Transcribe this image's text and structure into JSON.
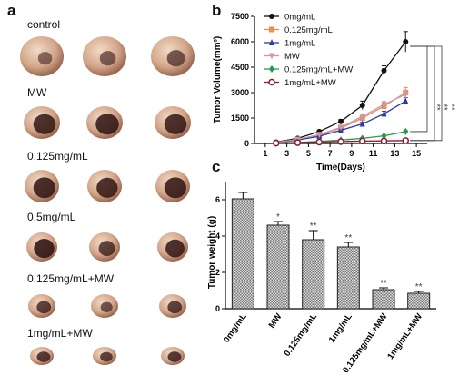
{
  "panels": {
    "a": "a",
    "b": "b",
    "c": "c"
  },
  "photo_panel": {
    "groups": [
      {
        "label": "control",
        "tumors": [
          {
            "dark": 0.05
          },
          {
            "dark": 0.15
          },
          {
            "dark": 0.25
          }
        ]
      },
      {
        "label": "MW",
        "tumors": [
          {
            "dark": 0.7
          },
          {
            "dark": 0.75
          },
          {
            "dark": 0.7
          }
        ]
      },
      {
        "label": "0.125mg/mL",
        "tumors": [
          {
            "dark": 0.75
          },
          {
            "dark": 0.7
          },
          {
            "dark": 0.75
          }
        ]
      },
      {
        "label": "0.5mg/mL",
        "tumors": [
          {
            "dark": 0.8
          },
          {
            "dark": 0.5
          },
          {
            "dark": 0.7
          }
        ]
      },
      {
        "label": "0.125mg/mL+MW",
        "tumors": [
          {
            "dark": 0.5
          },
          {
            "dark": 0.3
          },
          {
            "dark": 0.5
          }
        ]
      },
      {
        "label": "1mg/mL+MW",
        "tumors": [
          {
            "dark": 0.6
          },
          {
            "dark": 0.5
          },
          {
            "dark": 0.6
          }
        ]
      }
    ]
  },
  "chart_data": [
    {
      "type": "line",
      "xlabel": "Time(Days)",
      "ylabel": "Tumor Volume(mm³)",
      "xlim": [
        0,
        16
      ],
      "ylim": [
        0,
        7500
      ],
      "xticks": [
        "1",
        "3",
        "5",
        "7",
        "9",
        "11",
        "13",
        "15"
      ],
      "yticks": [
        "0",
        "1500",
        "3000",
        "4500",
        "6000",
        "7500"
      ],
      "legend_position": "top-left",
      "x": [
        2,
        4,
        6,
        8,
        10,
        12,
        14
      ],
      "series": [
        {
          "name": "0mg/mL",
          "color": "#111111",
          "marker": "circle-filled",
          "values": [
            80,
            300,
            700,
            1300,
            2250,
            4300,
            6000
          ],
          "errors": [
            0,
            30,
            60,
            120,
            250,
            280,
            600
          ]
        },
        {
          "name": "0.125mg/mL",
          "color": "#f08a5d",
          "marker": "square",
          "values": [
            60,
            220,
            480,
            900,
            1500,
            2200,
            3000
          ],
          "errors": [
            0,
            20,
            40,
            80,
            120,
            180,
            300
          ]
        },
        {
          "name": "1mg/mL",
          "color": "#2a3aa8",
          "marker": "triangle-up",
          "values": [
            50,
            200,
            420,
            780,
            1150,
            1750,
            2500
          ],
          "errors": [
            0,
            20,
            40,
            70,
            100,
            150,
            200
          ]
        },
        {
          "name": "MW",
          "color": "#c99aa4",
          "marker": "triangle-down",
          "values": [
            60,
            240,
            520,
            950,
            1600,
            2300,
            2900
          ],
          "errors": [
            0,
            20,
            40,
            80,
            120,
            180,
            250
          ]
        },
        {
          "name": "0.125mg/mL+MW",
          "color": "#2a9a4a",
          "marker": "diamond",
          "values": [
            20,
            60,
            120,
            200,
            300,
            450,
            700
          ],
          "errors": [
            0,
            10,
            15,
            20,
            30,
            40,
            60
          ]
        },
        {
          "name": "1mg/mL+MW",
          "color": "#8a1a30",
          "marker": "circle-open",
          "values": [
            20,
            50,
            80,
            110,
            140,
            150,
            170
          ],
          "errors": [
            0,
            5,
            10,
            10,
            15,
            20,
            20
          ]
        }
      ],
      "significance": [
        "**",
        "**",
        "**"
      ]
    },
    {
      "type": "bar",
      "ylabel": "Tumor weight (g)",
      "ylim": [
        0,
        7
      ],
      "yticks": [
        "0",
        "2",
        "4",
        "6"
      ],
      "categories": [
        "0mg/mL",
        "MW",
        "0.125mg/mL",
        "1mg/mL",
        "0.125mg/mL+MW",
        "1mg/mL+MW"
      ],
      "values": [
        6.05,
        4.6,
        3.8,
        3.4,
        1.05,
        0.85
      ],
      "errors": [
        0.35,
        0.2,
        0.5,
        0.25,
        0.1,
        0.1
      ],
      "significance": [
        "",
        "*",
        "**",
        "**",
        "**",
        "**"
      ],
      "bar_fill": "hatched-gray"
    }
  ]
}
